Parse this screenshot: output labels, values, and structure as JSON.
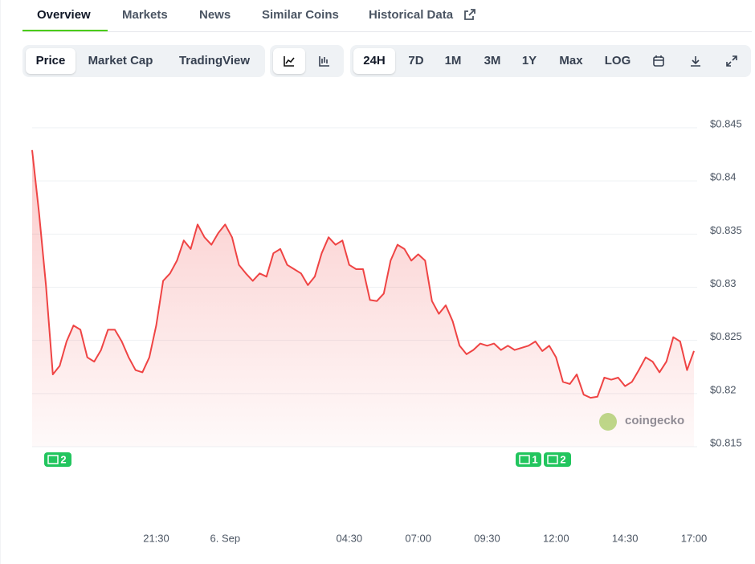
{
  "tabs": [
    "Overview",
    "Markets",
    "News",
    "Similar Coins",
    "Historical Data"
  ],
  "toolbar": {
    "views": [
      "Price",
      "Market Cap",
      "TradingView"
    ],
    "ranges": [
      "24H",
      "7D",
      "1M",
      "3M",
      "1Y",
      "Max",
      "LOG"
    ]
  },
  "watermark": "coingecko",
  "news_markers": [
    "2",
    "1",
    "2"
  ],
  "chart_data": {
    "type": "line",
    "color": "#ef4444",
    "grid": true,
    "categories": [
      null,
      null,
      null,
      null,
      null,
      null,
      null,
      null,
      null,
      null,
      null,
      null,
      null,
      null,
      null,
      null,
      null,
      null,
      "21:30",
      null,
      null,
      null,
      null,
      null,
      null,
      null,
      null,
      null,
      "6. Sep",
      null,
      null,
      null,
      null,
      null,
      null,
      null,
      null,
      null,
      null,
      null,
      null,
      null,
      null,
      null,
      null,
      null,
      "04:30",
      null,
      null,
      null,
      null,
      null,
      null,
      null,
      null,
      null,
      "07:00",
      null,
      null,
      null,
      null,
      null,
      null,
      null,
      null,
      null,
      "09:30",
      null,
      null,
      null,
      null,
      null,
      null,
      null,
      null,
      null,
      "12:00",
      null,
      null,
      null,
      null,
      null,
      null,
      null,
      null,
      null,
      "14:30",
      null,
      null,
      null,
      null,
      null,
      null,
      null,
      null,
      null,
      "17:00"
    ],
    "values": [
      0.8429,
      0.837,
      0.8302,
      0.8218,
      0.8226,
      0.8249,
      0.8264,
      0.826,
      0.8234,
      0.823,
      0.8241,
      0.826,
      0.826,
      0.8249,
      0.8234,
      0.8222,
      0.822,
      0.8234,
      0.8264,
      0.8306,
      0.8313,
      0.8325,
      0.8344,
      0.8336,
      0.8359,
      0.8347,
      0.834,
      0.8351,
      0.8359,
      0.8347,
      0.8321,
      0.8313,
      0.8306,
      0.8313,
      0.831,
      0.8332,
      0.8336,
      0.8321,
      0.8317,
      0.8313,
      0.8302,
      0.831,
      0.8332,
      0.8347,
      0.834,
      0.8344,
      0.8321,
      0.8317,
      0.8317,
      0.8288,
      0.8287,
      0.8294,
      0.8325,
      0.834,
      0.8336,
      0.8325,
      0.8331,
      0.8325,
      0.8287,
      0.8275,
      0.8283,
      0.8268,
      0.8245,
      0.8237,
      0.8241,
      0.8247,
      0.8245,
      0.8247,
      0.8241,
      0.8245,
      0.8241,
      0.8243,
      0.8245,
      0.8249,
      0.824,
      0.8245,
      0.8234,
      0.8211,
      0.8209,
      0.8218,
      0.8199,
      0.8196,
      0.8197,
      0.8215,
      0.8213,
      0.8215,
      0.8207,
      0.8211,
      0.8222,
      0.8234,
      0.823,
      0.822,
      0.823,
      0.8253,
      0.8249,
      0.8222,
      0.824
    ],
    "ylim": [
      0.815,
      0.845
    ],
    "yticks": [
      {
        "value": 0.815,
        "label": "$0.815"
      },
      {
        "value": 0.82,
        "label": "$0.82"
      },
      {
        "value": 0.825,
        "label": "$0.825"
      },
      {
        "value": 0.83,
        "label": "$0.83"
      },
      {
        "value": 0.835,
        "label": "$0.835"
      },
      {
        "value": 0.84,
        "label": "$0.84"
      },
      {
        "value": 0.845,
        "label": "$0.845"
      }
    ]
  }
}
